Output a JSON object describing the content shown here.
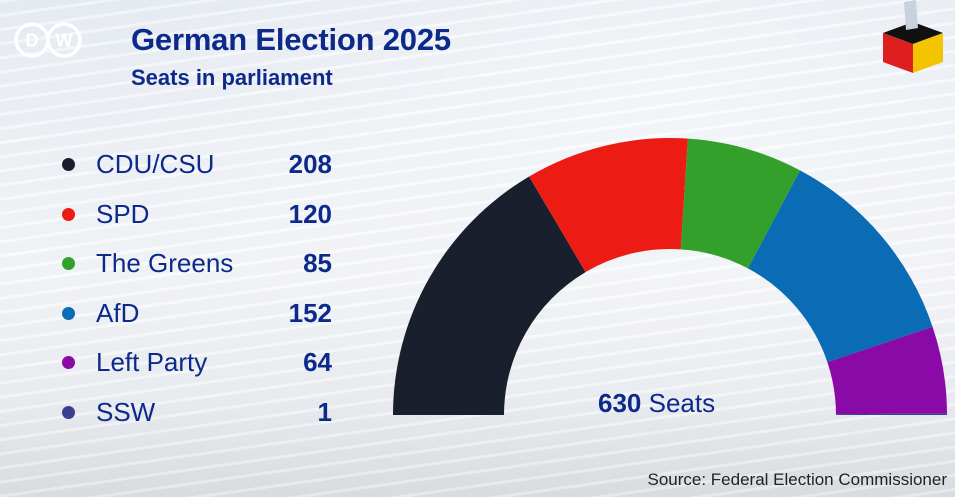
{
  "header": {
    "logo_text": "DW",
    "title": "German Election 2025",
    "subtitle": "Seats in parliament"
  },
  "icons": {
    "logo": "dw-logo-icon",
    "ballot": "ballot-box-icon"
  },
  "colors": {
    "text": "#0d2a8a",
    "flag_black": "#111111",
    "flag_red": "#dd1f1f",
    "flag_gold": "#f5c400"
  },
  "chart_data": {
    "type": "pie",
    "subtype": "half-donut (parliament seats)",
    "title": "German Election 2025",
    "subtitle": "Seats in parliament",
    "categories": [
      "CDU/CSU",
      "SPD",
      "The Greens",
      "AfD",
      "Left Party",
      "SSW"
    ],
    "values": [
      208,
      120,
      85,
      152,
      64,
      1
    ],
    "colors": [
      "#1a1f2e",
      "#ec1c14",
      "#33a02c",
      "#0a6cb5",
      "#8a0aa8",
      "#3b3f8f"
    ],
    "total": 630,
    "total_label_number": "630",
    "total_label_text": "Seats",
    "legend_position": "left",
    "source": "Source: Federal Election Commissioner"
  }
}
